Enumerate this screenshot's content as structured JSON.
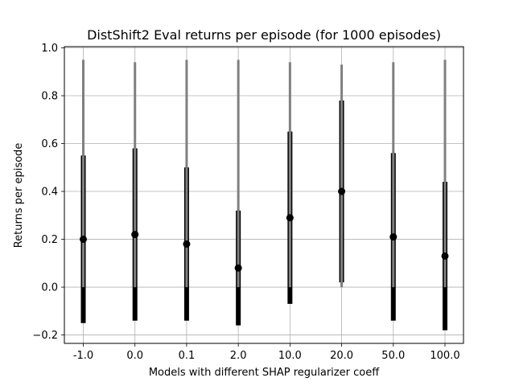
{
  "chart_data": {
    "type": "errorbar",
    "title": "DistShift2 Eval returns per episode (for 1000 episodes)",
    "xlabel": "Models with different SHAP regularizer coeff",
    "ylabel": "Returns per episode",
    "categories": [
      "-1.0",
      "0.0",
      "0.1",
      "2.0",
      "10.0",
      "20.0",
      "50.0",
      "100.0"
    ],
    "mean": [
      0.2,
      0.22,
      0.18,
      0.08,
      0.29,
      0.4,
      0.21,
      0.13
    ],
    "std_low": [
      -0.15,
      -0.14,
      -0.14,
      -0.16,
      -0.07,
      0.02,
      -0.14,
      -0.18
    ],
    "std_high": [
      0.55,
      0.58,
      0.5,
      0.32,
      0.65,
      0.78,
      0.56,
      0.44
    ],
    "min": [
      0.0,
      0.0,
      0.0,
      0.0,
      0.0,
      0.0,
      0.0,
      0.0
    ],
    "max": [
      0.95,
      0.94,
      0.95,
      0.95,
      0.94,
      0.93,
      0.94,
      0.95
    ],
    "ylim": [
      -0.235,
      1.005
    ],
    "yticks": [
      -0.2,
      0.0,
      0.2,
      0.4,
      0.6,
      0.8,
      1.0
    ],
    "ytick_labels": [
      "−0.2",
      "0.0",
      "0.2",
      "0.4",
      "0.6",
      "0.8",
      "1.0"
    ],
    "grid": true,
    "colors": {
      "range": "#808080",
      "std": "#000000",
      "mean": "#000000",
      "grid": "#b0b0b0"
    }
  }
}
